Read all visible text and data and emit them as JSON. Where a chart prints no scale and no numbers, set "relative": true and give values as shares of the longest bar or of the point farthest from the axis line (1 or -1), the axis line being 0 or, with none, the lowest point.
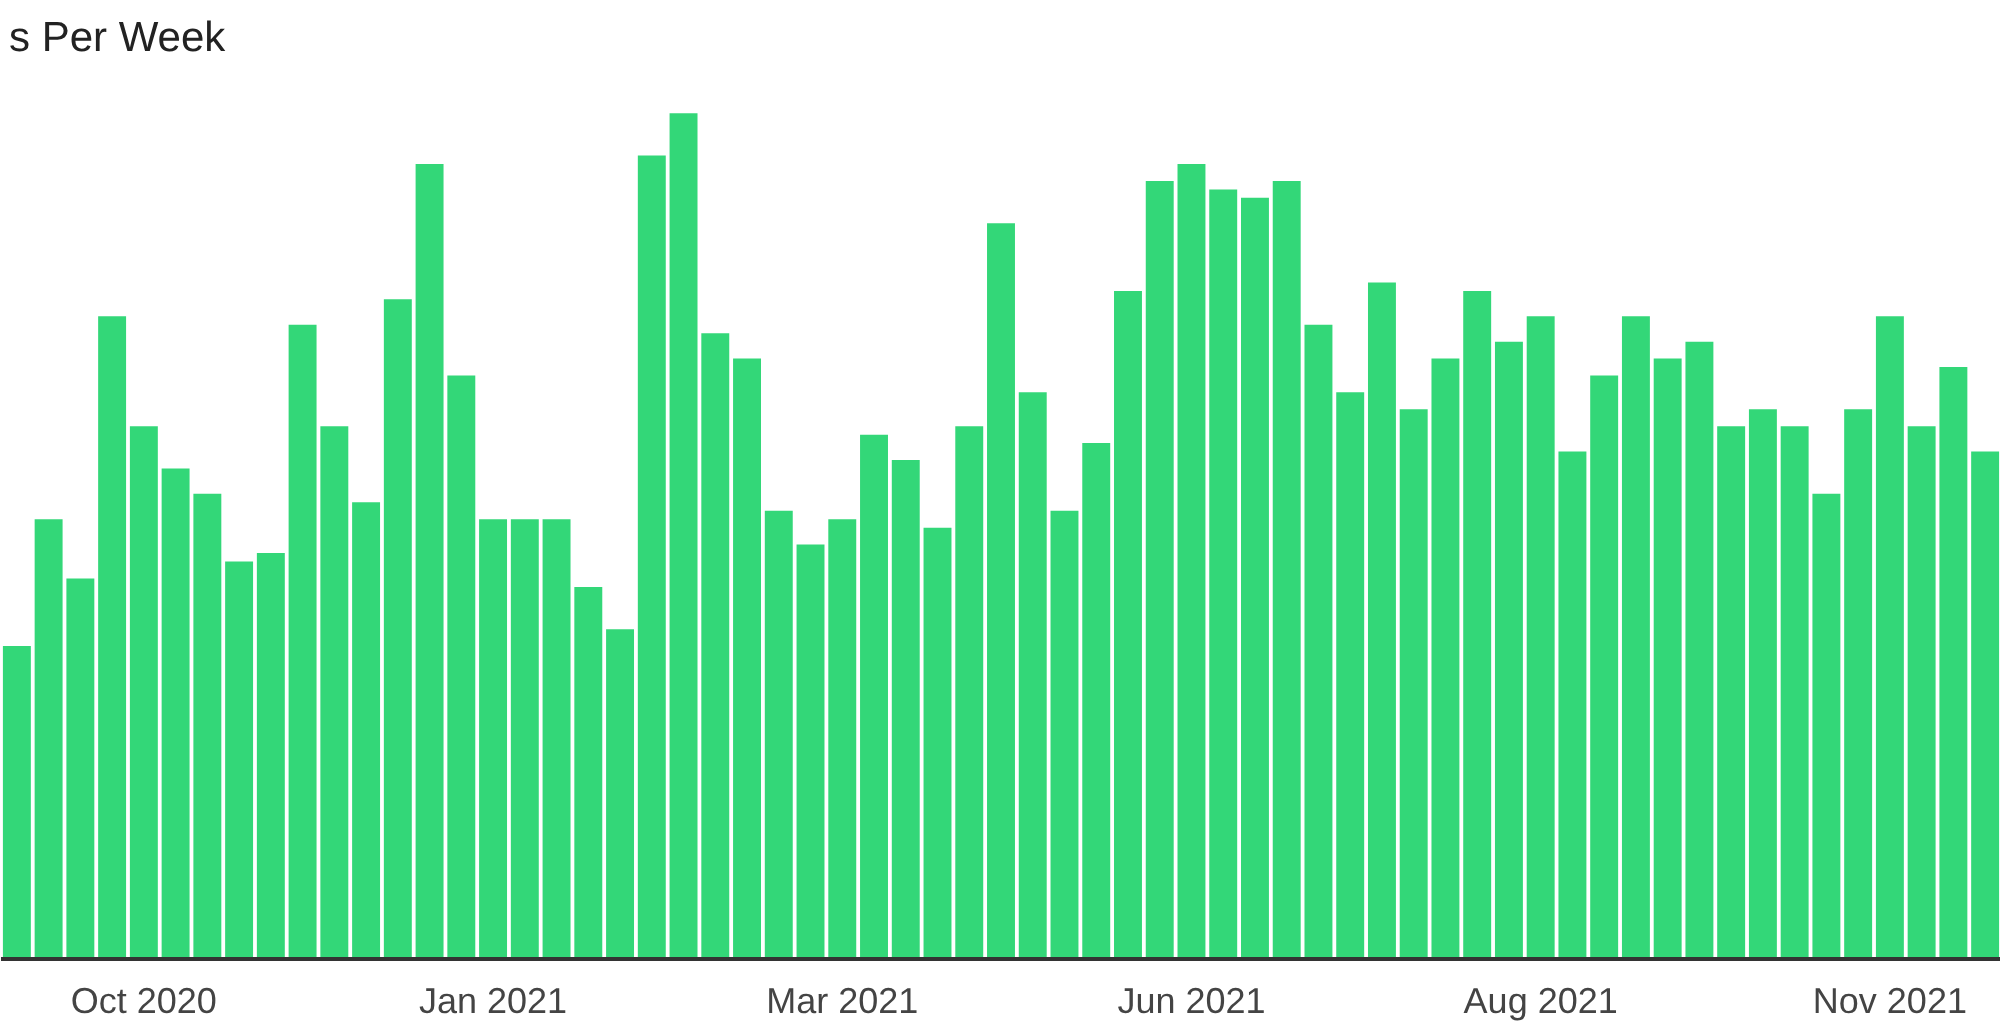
{
  "chart_data": {
    "type": "bar",
    "title": "s Per Week",
    "relative": true,
    "color": "#33d778",
    "categories": [
      null,
      null,
      null,
      null,
      "Oct 2020",
      null,
      null,
      null,
      null,
      null,
      null,
      null,
      null,
      null,
      null,
      "Jan 2021",
      null,
      null,
      null,
      null,
      null,
      null,
      null,
      null,
      null,
      null,
      "Mar 2021",
      null,
      null,
      null,
      null,
      null,
      null,
      null,
      null,
      null,
      null,
      "Jun 2021",
      null,
      null,
      null,
      null,
      null,
      null,
      null,
      null,
      null,
      null,
      "Aug 2021",
      null,
      null,
      null,
      null,
      null,
      null,
      null,
      null,
      null,
      null,
      "Nov 2021",
      null,
      null,
      null
    ],
    "values": [
      0.37,
      0.52,
      0.45,
      0.76,
      0.63,
      0.58,
      0.55,
      0.47,
      0.48,
      0.75,
      0.63,
      0.54,
      0.78,
      0.94,
      0.69,
      0.52,
      0.52,
      0.52,
      0.44,
      0.39,
      0.95,
      1.0,
      0.74,
      0.71,
      0.53,
      0.49,
      0.52,
      0.62,
      0.59,
      0.51,
      0.63,
      0.87,
      0.67,
      0.53,
      0.61,
      0.79,
      0.92,
      0.94,
      0.91,
      0.9,
      0.92,
      0.75,
      0.67,
      0.8,
      0.65,
      0.71,
      0.79,
      0.73,
      0.76,
      0.6,
      0.69,
      0.76,
      0.71,
      0.73,
      0.63,
      0.65,
      0.63,
      0.55,
      0.65,
      0.76,
      0.63,
      0.7,
      0.6
    ]
  }
}
